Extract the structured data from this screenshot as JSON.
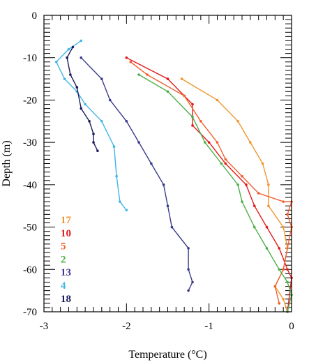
{
  "chart_data": {
    "type": "line",
    "title": "",
    "xlabel": "Temperature (°C)",
    "ylabel": "Depth (m)",
    "xlim": [
      -3,
      0
    ],
    "ylim": [
      -70,
      0
    ],
    "x_ticks": [
      -3,
      -2,
      -1,
      0
    ],
    "y_ticks": [
      0,
      -10,
      -20,
      -30,
      -40,
      -50,
      -60,
      -70
    ],
    "grid": false,
    "legend_position": "bottom-left",
    "series": [
      {
        "name": "17",
        "color": "#f0962c",
        "points": [
          [
            -1.33,
            -15
          ],
          [
            -0.9,
            -20
          ],
          [
            -0.65,
            -25
          ],
          [
            -0.5,
            -30
          ],
          [
            -0.35,
            -35
          ],
          [
            -0.28,
            -40
          ],
          [
            -0.28,
            -45
          ],
          [
            -0.1,
            -50
          ],
          [
            -0.05,
            -55
          ],
          [
            -0.1,
            -60
          ],
          [
            -0.2,
            -64
          ],
          [
            -0.1,
            -67
          ],
          [
            -0.05,
            -70
          ]
        ]
      },
      {
        "name": "10",
        "color": "#e41a1c",
        "points": [
          [
            -2.0,
            -10
          ],
          [
            -1.5,
            -15
          ],
          [
            -1.2,
            -21
          ],
          [
            -1.2,
            -26
          ],
          [
            -1.0,
            -30
          ],
          [
            -0.8,
            -35
          ],
          [
            -0.55,
            -40
          ],
          [
            -0.45,
            -45
          ],
          [
            -0.3,
            -50
          ],
          [
            -0.15,
            -55
          ],
          [
            -0.05,
            -60
          ],
          [
            0.0,
            -62
          ],
          [
            -0.05,
            -70
          ]
        ]
      },
      {
        "name": "5",
        "color": "#f05f2e",
        "points": [
          [
            -1.95,
            -11
          ],
          [
            -1.75,
            -14
          ],
          [
            -1.3,
            -19
          ],
          [
            -1.1,
            -25
          ],
          [
            -0.9,
            -30
          ],
          [
            -0.8,
            -34
          ],
          [
            -0.6,
            -38
          ],
          [
            -0.4,
            -42
          ],
          [
            -0.1,
            -44
          ],
          [
            0.0,
            -44
          ],
          [
            -0.05,
            -47
          ],
          [
            0.0,
            -50
          ],
          [
            -0.1,
            -60
          ],
          [
            -0.2,
            -64
          ],
          [
            -0.15,
            -68
          ]
        ]
      },
      {
        "name": "2",
        "color": "#4daf4a",
        "points": [
          [
            -1.85,
            -14
          ],
          [
            -1.5,
            -18
          ],
          [
            -1.2,
            -24
          ],
          [
            -1.05,
            -30
          ],
          [
            -0.85,
            -35
          ],
          [
            -0.65,
            -40
          ],
          [
            -0.6,
            -44
          ],
          [
            -0.45,
            -50
          ],
          [
            -0.3,
            -55
          ],
          [
            -0.15,
            -60
          ],
          [
            -0.05,
            -63
          ],
          [
            0.0,
            -66
          ],
          [
            -0.05,
            -70
          ]
        ]
      },
      {
        "name": "13",
        "color": "#3a3a8c",
        "points": [
          [
            -2.55,
            -10
          ],
          [
            -2.3,
            -15
          ],
          [
            -2.2,
            -20
          ],
          [
            -2.0,
            -25
          ],
          [
            -1.85,
            -30
          ],
          [
            -1.7,
            -35
          ],
          [
            -1.55,
            -40
          ],
          [
            -1.5,
            -45
          ],
          [
            -1.45,
            -50
          ],
          [
            -1.25,
            -55
          ],
          [
            -1.25,
            -60
          ],
          [
            -1.2,
            -63
          ],
          [
            -1.25,
            -65
          ]
        ]
      },
      {
        "name": "4",
        "color": "#41b6e6",
        "points": [
          [
            -2.55,
            -6
          ],
          [
            -2.7,
            -8
          ],
          [
            -2.85,
            -11
          ],
          [
            -2.75,
            -15
          ],
          [
            -2.6,
            -18
          ],
          [
            -2.5,
            -21
          ],
          [
            -2.3,
            -25
          ],
          [
            -2.15,
            -31
          ],
          [
            -2.12,
            -38
          ],
          [
            -2.08,
            -44
          ],
          [
            -2.0,
            -46
          ]
        ]
      },
      {
        "name": "18",
        "color": "#1a1a5e",
        "points": [
          [
            -2.65,
            -7.5
          ],
          [
            -2.72,
            -10
          ],
          [
            -2.68,
            -14
          ],
          [
            -2.6,
            -17
          ],
          [
            -2.55,
            -22
          ],
          [
            -2.45,
            -25
          ],
          [
            -2.4,
            -28
          ],
          [
            -2.4,
            -30
          ],
          [
            -2.35,
            -32
          ]
        ]
      }
    ]
  }
}
